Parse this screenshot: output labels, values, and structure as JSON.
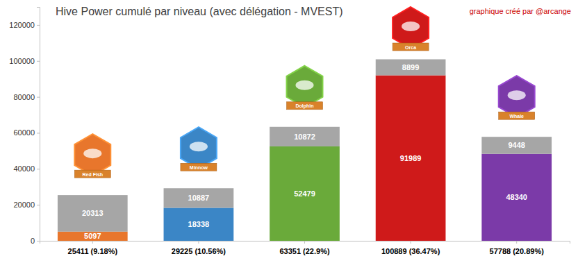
{
  "chart_data": {
    "type": "bar",
    "title": "Hive Power cumulé par niveau (avec délégation - MVEST)",
    "subtitle": "graphique créé par @arcange",
    "categories": [
      "25411 (9.18%)",
      "29225 (10.56%)",
      "63351 (22.9%)",
      "100889 (36.47%)",
      "57788 (20.89%)"
    ],
    "annotations": [
      "Red Fish",
      "Minnow",
      "Dolphin",
      "Orca",
      "Whale"
    ],
    "series": [
      {
        "colors": [
          "#e8762c",
          "#3b86c6",
          "#6aaa3a",
          "#cf1a1a",
          "#7b3aa8"
        ],
        "values": [
          5097,
          18338,
          52479,
          91989,
          48340
        ]
      },
      {
        "color": "#a6a6a6",
        "values": [
          20313,
          10887,
          10872,
          8899,
          9448
        ]
      }
    ],
    "stacked": true,
    "data_labels": true,
    "grid": false,
    "ylim": [
      0,
      130000
    ],
    "yticks": [
      0,
      20000,
      40000,
      60000,
      80000,
      100000,
      120000
    ]
  }
}
